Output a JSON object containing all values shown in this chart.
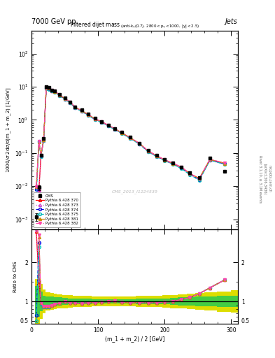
{
  "header_left": "7000 GeV pp",
  "header_right": "Jets",
  "watermark": "CMS_2013_I1224539",
  "ylabel_main": "1000/σ 2dσ/d(m_1 + m_2) [1/GeV]",
  "ylabel_ratio": "Ratio to CMS",
  "xlabel": "(m_1 + m_2) / 2 [GeV]",
  "cms_x": [
    7,
    11,
    14,
    18,
    22,
    26,
    30,
    35,
    42,
    50,
    58,
    65,
    75,
    85,
    95,
    105,
    115,
    125,
    135,
    148,
    162,
    175,
    188,
    200,
    212,
    225,
    238,
    252,
    268,
    290
  ],
  "cms_y": [
    0.0012,
    0.009,
    0.085,
    0.28,
    10.0,
    9.5,
    8.0,
    7.5,
    5.8,
    4.5,
    3.5,
    2.5,
    2.0,
    1.5,
    1.1,
    0.9,
    0.7,
    0.55,
    0.42,
    0.3,
    0.2,
    0.12,
    0.085,
    0.065,
    0.05,
    0.038,
    0.025,
    0.018,
    0.07,
    0.028
  ],
  "cms_yerr": [
    0.0003,
    0.0015,
    0.008,
    0.02,
    0.3,
    0.3,
    0.25,
    0.22,
    0.17,
    0.13,
    0.1,
    0.07,
    0.06,
    0.045,
    0.033,
    0.027,
    0.021,
    0.016,
    0.013,
    0.009,
    0.006,
    0.0036,
    0.0026,
    0.002,
    0.0015,
    0.001,
    0.001,
    0.0007,
    0.004,
    0.003
  ],
  "p370_y": [
    0.009,
    0.008,
    0.082,
    0.245,
    9.3,
    8.85,
    7.65,
    7.2,
    5.55,
    4.35,
    3.38,
    2.4,
    1.9,
    1.44,
    1.07,
    0.878,
    0.685,
    0.535,
    0.41,
    0.29,
    0.194,
    0.115,
    0.082,
    0.062,
    0.049,
    0.037,
    0.024,
    0.017,
    0.064,
    0.049
  ],
  "p373_y": [
    0.0085,
    0.0075,
    0.08,
    0.24,
    9.1,
    8.65,
    7.55,
    7.1,
    5.5,
    4.28,
    3.33,
    2.37,
    1.87,
    1.41,
    1.05,
    0.862,
    0.672,
    0.525,
    0.403,
    0.285,
    0.19,
    0.113,
    0.08,
    0.061,
    0.048,
    0.036,
    0.023,
    0.016,
    0.062,
    0.047
  ],
  "p374_y": [
    0.008,
    0.23,
    0.08,
    0.24,
    9.0,
    8.55,
    7.45,
    7.0,
    5.45,
    4.22,
    3.3,
    2.34,
    1.84,
    1.39,
    1.04,
    0.855,
    0.667,
    0.52,
    0.399,
    0.282,
    0.188,
    0.112,
    0.079,
    0.06,
    0.047,
    0.035,
    0.023,
    0.016,
    0.061,
    0.047
  ],
  "p375_y": [
    0.005,
    0.22,
    0.079,
    0.237,
    8.85,
    8.4,
    7.35,
    6.9,
    5.38,
    4.16,
    3.26,
    2.31,
    1.82,
    1.37,
    1.02,
    0.844,
    0.659,
    0.514,
    0.394,
    0.278,
    0.185,
    0.11,
    0.078,
    0.059,
    0.046,
    0.034,
    0.022,
    0.015,
    0.06,
    0.046
  ],
  "p381_y": [
    0.0095,
    0.215,
    0.085,
    0.255,
    9.4,
    8.95,
    7.75,
    7.3,
    5.62,
    4.4,
    3.42,
    2.43,
    1.91,
    1.45,
    1.08,
    0.885,
    0.69,
    0.54,
    0.414,
    0.292,
    0.195,
    0.116,
    0.082,
    0.062,
    0.049,
    0.037,
    0.024,
    0.017,
    0.064,
    0.049
  ],
  "p382_y": [
    0.0095,
    0.225,
    0.086,
    0.26,
    9.5,
    9.05,
    7.85,
    7.4,
    5.7,
    4.45,
    3.47,
    2.46,
    1.93,
    1.47,
    1.09,
    0.895,
    0.697,
    0.545,
    0.418,
    0.295,
    0.196,
    0.117,
    0.083,
    0.063,
    0.05,
    0.038,
    0.024,
    0.017,
    0.065,
    0.05
  ],
  "r370": [
    2.8,
    1.5,
    0.97,
    0.87,
    0.87,
    0.87,
    0.9,
    0.92,
    0.96,
    1.0,
    0.97,
    0.96,
    0.94,
    0.97,
    0.97,
    0.98,
    1.0,
    1.01,
    0.98,
    0.97,
    0.97,
    0.96,
    0.97,
    0.98,
    1.0,
    1.05,
    1.1,
    1.2,
    1.35,
    1.55
  ],
  "r373": [
    2.85,
    1.55,
    0.95,
    0.86,
    0.86,
    0.87,
    0.9,
    0.92,
    0.96,
    1.0,
    0.97,
    0.96,
    0.94,
    0.97,
    0.97,
    0.98,
    1.0,
    1.01,
    0.98,
    0.97,
    0.97,
    0.96,
    0.97,
    0.98,
    1.0,
    1.05,
    1.1,
    1.2,
    1.35,
    1.55
  ],
  "r374": [
    0.65,
    2.5,
    0.93,
    0.86,
    0.85,
    0.86,
    0.9,
    0.92,
    0.96,
    1.0,
    0.97,
    0.96,
    0.94,
    0.97,
    0.97,
    0.98,
    1.0,
    1.01,
    0.98,
    0.97,
    0.97,
    0.96,
    0.97,
    0.98,
    1.0,
    1.05,
    1.1,
    1.2,
    1.35,
    1.55
  ],
  "r375": [
    0.5,
    2.4,
    0.92,
    0.85,
    0.85,
    0.86,
    0.9,
    0.92,
    0.96,
    1.0,
    0.97,
    0.96,
    0.94,
    0.97,
    0.97,
    0.98,
    1.0,
    1.01,
    0.98,
    0.97,
    0.97,
    0.96,
    0.97,
    0.98,
    1.0,
    1.05,
    1.1,
    1.2,
    1.35,
    1.55
  ],
  "r381": [
    2.9,
    2.65,
    0.97,
    0.88,
    0.87,
    0.87,
    0.9,
    0.92,
    0.96,
    1.0,
    0.97,
    0.96,
    0.94,
    0.97,
    0.97,
    0.98,
    1.0,
    1.01,
    0.98,
    0.97,
    0.97,
    0.96,
    0.97,
    0.98,
    1.0,
    1.05,
    1.1,
    1.2,
    1.35,
    1.55
  ],
  "r382": [
    2.9,
    2.7,
    0.97,
    0.88,
    0.87,
    0.87,
    0.9,
    0.92,
    0.96,
    1.0,
    0.97,
    0.96,
    0.94,
    0.97,
    0.97,
    0.98,
    1.0,
    1.01,
    0.98,
    0.97,
    0.97,
    0.96,
    0.97,
    0.98,
    1.0,
    1.05,
    1.1,
    1.2,
    1.35,
    1.55
  ],
  "band_edges": [
    5,
    12,
    17,
    21,
    28,
    33,
    38,
    46,
    54,
    62,
    70,
    80,
    90,
    100,
    110,
    120,
    132,
    144,
    156,
    170,
    184,
    196,
    208,
    220,
    233,
    246,
    260,
    278,
    300,
    315
  ],
  "green_lo": [
    0.6,
    0.75,
    0.85,
    0.88,
    0.88,
    0.89,
    0.9,
    0.91,
    0.92,
    0.93,
    0.93,
    0.93,
    0.94,
    0.94,
    0.94,
    0.94,
    0.94,
    0.94,
    0.93,
    0.93,
    0.92,
    0.92,
    0.91,
    0.9,
    0.89,
    0.88,
    0.87,
    0.86,
    0.85,
    0.84
  ],
  "green_hi": [
    1.4,
    1.25,
    1.15,
    1.12,
    1.12,
    1.11,
    1.1,
    1.09,
    1.08,
    1.07,
    1.07,
    1.07,
    1.06,
    1.06,
    1.06,
    1.06,
    1.06,
    1.06,
    1.07,
    1.07,
    1.08,
    1.08,
    1.09,
    1.1,
    1.11,
    1.12,
    1.13,
    1.14,
    1.15,
    1.16
  ],
  "yellow_lo": [
    0.42,
    0.55,
    0.7,
    0.76,
    0.78,
    0.8,
    0.82,
    0.83,
    0.84,
    0.85,
    0.86,
    0.86,
    0.87,
    0.87,
    0.87,
    0.87,
    0.87,
    0.87,
    0.86,
    0.86,
    0.85,
    0.84,
    0.83,
    0.82,
    0.8,
    0.78,
    0.76,
    0.74,
    0.72,
    0.7
  ],
  "yellow_hi": [
    1.58,
    1.45,
    1.3,
    1.24,
    1.22,
    1.2,
    1.18,
    1.17,
    1.16,
    1.15,
    1.14,
    1.14,
    1.13,
    1.13,
    1.13,
    1.13,
    1.13,
    1.13,
    1.14,
    1.14,
    1.15,
    1.16,
    1.17,
    1.18,
    1.2,
    1.22,
    1.24,
    1.26,
    1.28,
    1.3
  ],
  "col_370": "#ff0000",
  "col_373": "#cc44cc",
  "col_374": "#0000dd",
  "col_375": "#00bbbb",
  "col_381": "#cc8800",
  "col_382": "#ff44aa",
  "col_cms": "#000000",
  "col_green": "#44cc44",
  "col_yellow": "#dddd00",
  "xlim": [
    5,
    310
  ],
  "ylim_main_lo": 0.0005,
  "ylim_main_hi": 500,
  "ylim_ratio_lo": 0.42,
  "ylim_ratio_hi": 2.85
}
